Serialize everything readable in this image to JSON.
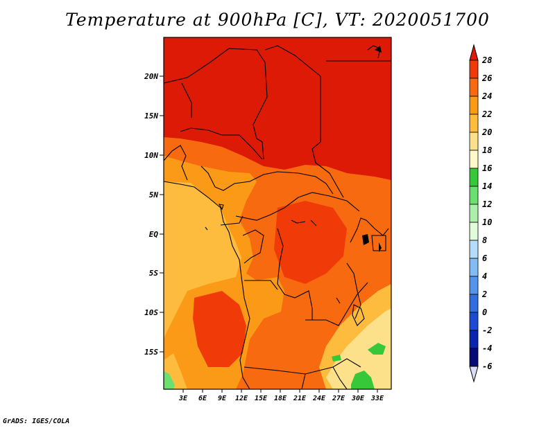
{
  "title": "Temperature at 900hPa [C], VT: 2020051700",
  "credit": "GrADS: IGES/COLA",
  "map": {
    "lat_labels": [
      "20N",
      "15N",
      "10N",
      "5N",
      "EQ",
      "5S",
      "10S",
      "15S"
    ],
    "lon_labels": [
      "3E",
      "6E",
      "9E",
      "12E",
      "15E",
      "18E",
      "21E",
      "24E",
      "27E",
      "30E",
      "33E"
    ]
  },
  "colorbar": {
    "labels": [
      "28",
      "26",
      "24",
      "22",
      "20",
      "18",
      "16",
      "14",
      "12",
      "10",
      "8",
      "6",
      "4",
      "2",
      "0",
      "-2",
      "-4",
      "-6"
    ],
    "colors": [
      "#dc1a05",
      "#f03b09",
      "#f76a10",
      "#fb9a17",
      "#fdbc3d",
      "#fde08a",
      "#fff8c8",
      "#37c83a",
      "#6be06e",
      "#aaf0a8",
      "#e0fcd8",
      "#b4dcfb",
      "#82bcf5",
      "#5196ec",
      "#2f6fe0",
      "#1a4bd1",
      "#0a25ad",
      "#060a78",
      "#d9dcf4"
    ]
  }
}
